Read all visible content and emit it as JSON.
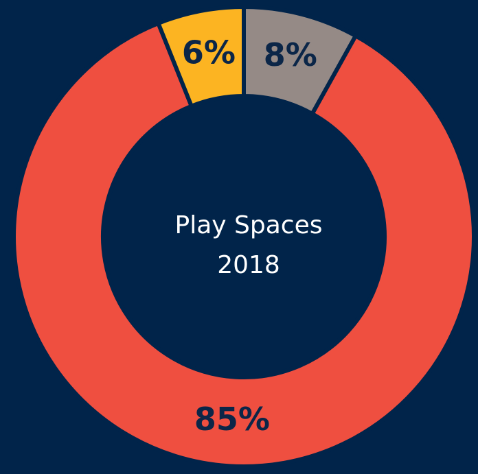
{
  "chart_data": {
    "type": "donut",
    "title": "Play Spaces",
    "subtitle": "2018",
    "categories": [
      null,
      null,
      null
    ],
    "values": [
      8,
      85,
      6
    ],
    "value_labels": [
      "8%",
      "85%",
      "6%"
    ],
    "colors": [
      "#958a86",
      "#ef4f40",
      "#fcb422"
    ]
  }
}
